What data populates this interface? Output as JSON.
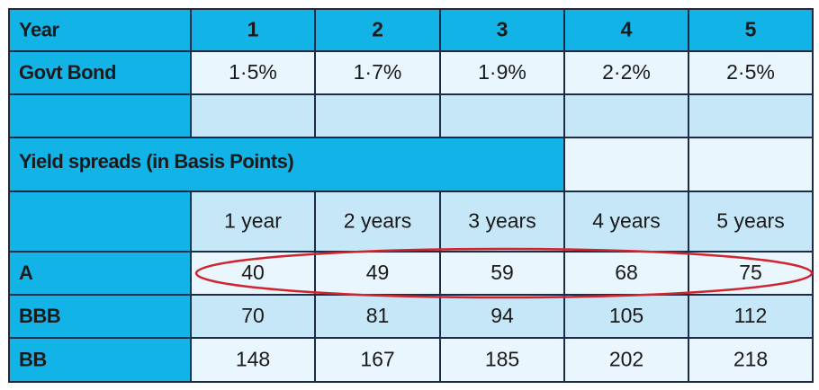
{
  "table": {
    "header": [
      "Year",
      "1",
      "2",
      "3",
      "4",
      "5"
    ],
    "govt_bond": {
      "label": "Govt Bond",
      "values": [
        "1·5%",
        "1·7%",
        "1·9%",
        "2·2%",
        "2·5%"
      ]
    },
    "section": "Yield spreads (in Basis Points)",
    "tenors": [
      "1 year",
      "2 years",
      "3 years",
      "4 years",
      "5 years"
    ],
    "rows": [
      {
        "label": "A",
        "values": [
          40,
          49,
          59,
          68,
          75
        ]
      },
      {
        "label": "BBB",
        "values": [
          70,
          81,
          94,
          105,
          112
        ]
      },
      {
        "label": "BB",
        "values": [
          148,
          167,
          185,
          202,
          218
        ]
      }
    ]
  }
}
